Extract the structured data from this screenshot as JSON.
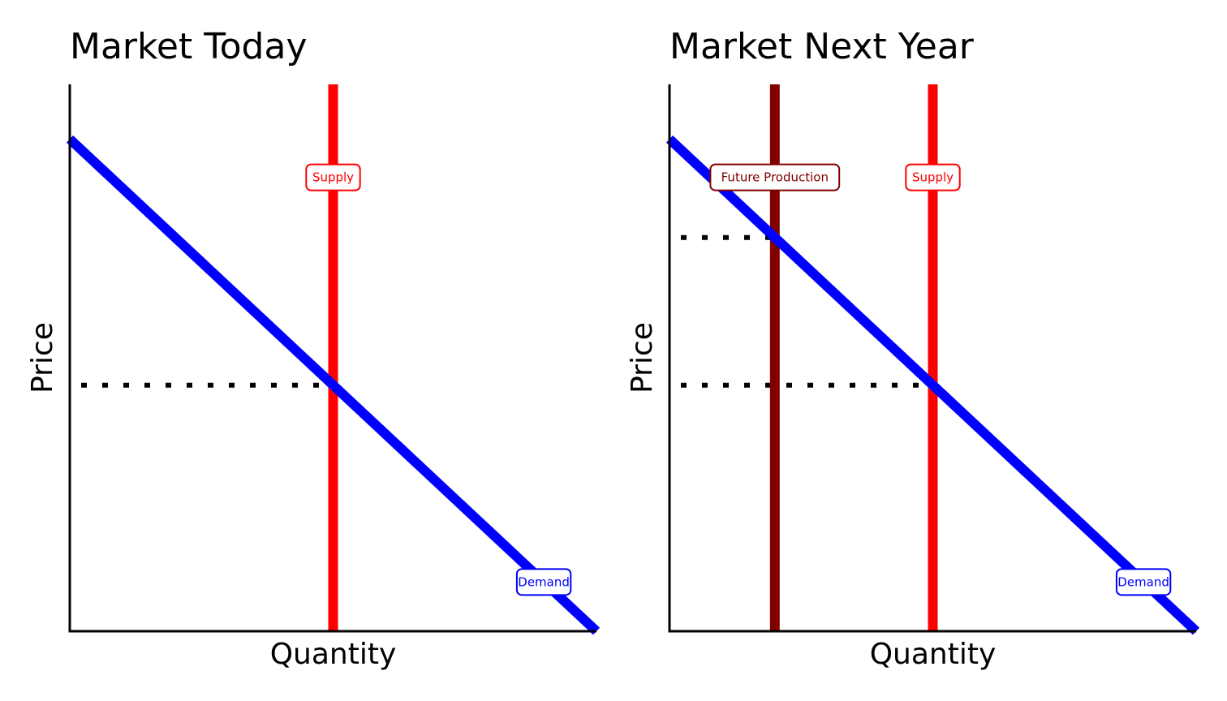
{
  "chart_data": [
    {
      "type": "line",
      "title": "Market Today",
      "xlabel": "Quantity",
      "ylabel": "Price",
      "xlim": [
        0,
        10
      ],
      "ylim": [
        0,
        10
      ],
      "grid": false,
      "series": [
        {
          "name": "Demand",
          "color": "#0000ff",
          "points": [
            [
              0,
              9
            ],
            [
              10,
              0
            ]
          ],
          "label_at": [
            9,
            0.9
          ]
        },
        {
          "name": "Supply",
          "color": "#ff0000",
          "points": [
            [
              5,
              0
            ],
            [
              5,
              10
            ]
          ],
          "label_at": [
            5,
            8.3
          ]
        }
      ],
      "dotted_guides": [
        {
          "y": 4.5,
          "x_end": 5
        }
      ]
    },
    {
      "type": "line",
      "title": "Market Next Year",
      "xlabel": "Quantity",
      "ylabel": "Price",
      "xlim": [
        0,
        10
      ],
      "ylim": [
        0,
        10
      ],
      "grid": false,
      "series": [
        {
          "name": "Demand",
          "color": "#0000ff",
          "points": [
            [
              0,
              9
            ],
            [
              10,
              0
            ]
          ],
          "label_at": [
            9,
            0.9
          ]
        },
        {
          "name": "Supply",
          "color": "#ff0000",
          "points": [
            [
              5,
              0
            ],
            [
              5,
              10
            ]
          ],
          "label_at": [
            5,
            8.3
          ]
        },
        {
          "name": "Future Production",
          "color": "#800000",
          "points": [
            [
              2,
              0
            ],
            [
              2,
              10
            ]
          ],
          "label_at": [
            2,
            8.3
          ]
        }
      ],
      "dotted_guides": [
        {
          "y": 4.5,
          "x_end": 5
        },
        {
          "y": 7.2,
          "x_end": 2
        }
      ]
    }
  ]
}
